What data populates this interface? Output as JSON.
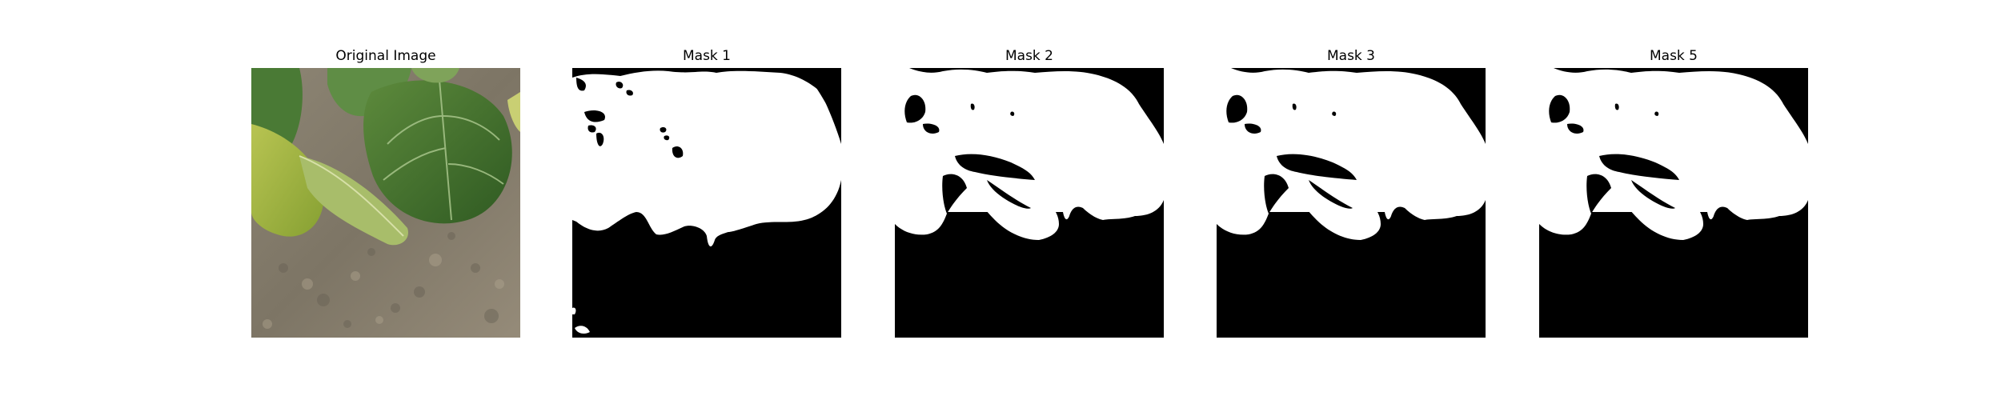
{
  "figure": {
    "panels": [
      {
        "title": "Original Image",
        "kind": "photo",
        "subject": "leaves over soil"
      },
      {
        "title": "Mask 1",
        "kind": "mask"
      },
      {
        "title": "Mask 2",
        "kind": "mask"
      },
      {
        "title": "Mask 3",
        "kind": "mask"
      },
      {
        "title": "Mask 5",
        "kind": "mask"
      }
    ],
    "colors": {
      "background": "#ffffff",
      "mask_foreground": "#ffffff",
      "mask_background": "#000000",
      "soil": "#8a8070",
      "leaf_dark": "#3f6a2a",
      "leaf_light": "#a9bb45"
    }
  }
}
